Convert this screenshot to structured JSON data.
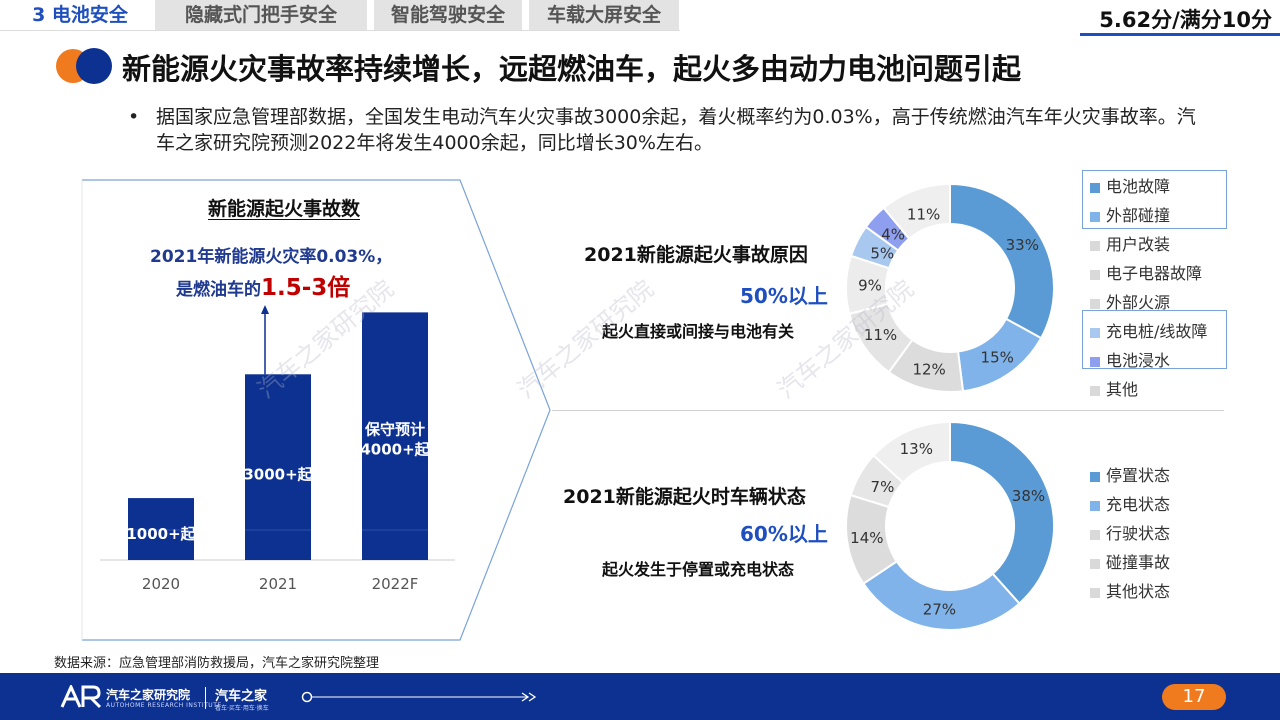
{
  "tabs": [
    "3 电池安全",
    "隐藏式门把手安全",
    "智能驾驶安全",
    "车载大屏安全"
  ],
  "score": "5.62分/满分10分",
  "title": "新能源火灾事故率持续增长，远超燃油车，起火多由动力电池问题引起",
  "bullet": "据国家应急管理部数据，全国发生电动汽车火灾事故3000余起，着火概率约为0.03%，高于传统燃油汽车年火灾事故率。汽车之家研究院预测2022年将发生4000余起，同比增长30%左右。",
  "bullet_marker": "•",
  "left_panel": {
    "title": "新能源起火事故数",
    "callout_line1": "2021年新能源火灾率0.03%，",
    "callout_line2_prefix": "是燃油车的",
    "callout_highlight": "1.5-3倍"
  },
  "watermark": "汽车之家研究院",
  "colors": {
    "navy": "#0c3191",
    "blue": "#5b9bd5",
    "accent_red": "#c00000",
    "orange": "#f07a1e",
    "title_blue": "#1f4fbf"
  },
  "chart_data": [
    {
      "type": "bar",
      "title": "新能源起火事故数",
      "categories": [
        "2020",
        "2021",
        "2022F"
      ],
      "values": [
        1000,
        3000,
        4000
      ],
      "data_labels": [
        "1000+起",
        "3000+起",
        "保守预计4000+起"
      ],
      "ylim": [
        0,
        4200
      ]
    },
    {
      "type": "pie",
      "title": "2021新能源起火事故原因",
      "highlight": "50%以上",
      "subtitle": "起火直接或间接与电池有关",
      "labels": [
        "电池故障",
        "外部碰撞",
        "用户改装",
        "电子电器故障",
        "外部火源",
        "充电桩/线故障",
        "电池浸水",
        "其他"
      ],
      "values": [
        33,
        15,
        12,
        11,
        9,
        5,
        4,
        11
      ],
      "value_labels": [
        "33%",
        "15%",
        "12%",
        "11%",
        "9%",
        "5%",
        "4%",
        "11%"
      ],
      "colors": [
        "#5b9bd5",
        "#7fb3ea",
        "#dcdcdc",
        "#e4e4e4",
        "#ececec",
        "#a9c8f0",
        "#8e9ff0",
        "#efefef"
      ]
    },
    {
      "type": "pie",
      "title": "2021新能源起火时车辆状态",
      "highlight": "60%以上",
      "subtitle": "起火发生于停置或充电状态",
      "labels": [
        "停置状态",
        "充电状态",
        "行驶状态",
        "碰撞事故",
        "其他状态"
      ],
      "values": [
        38,
        27,
        14,
        7,
        13
      ],
      "value_labels": [
        "38%",
        "27%",
        "14%",
        "7%",
        "13%"
      ],
      "colors": [
        "#5b9bd5",
        "#7fb3ea",
        "#dcdcdc",
        "#e6e6e6",
        "#efefef"
      ]
    }
  ],
  "source": "数据来源：应急管理部消防救援局，汽车之家研究院整理",
  "footer": {
    "logo_text": "汽车之家研究院",
    "logo_sub": "AUTOHOME RESEARCH INSTITUTE",
    "brand": "汽车之家",
    "brand_sub": "看车·买车·用车·换车",
    "page": "17"
  }
}
